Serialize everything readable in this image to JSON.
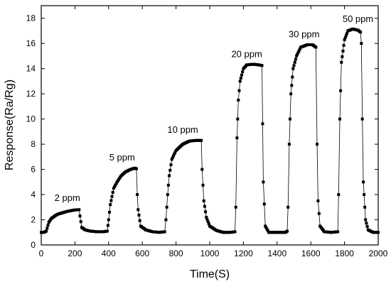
{
  "chart_data": {
    "type": "scatter",
    "title": "",
    "xlabel": "Time(S)",
    "ylabel": "Response(Ra/Rg)",
    "xlim": [
      0,
      2000
    ],
    "ylim": [
      0,
      19
    ],
    "xticks": [
      0,
      200,
      400,
      600,
      800,
      1000,
      1200,
      1400,
      1600,
      1800,
      2000
    ],
    "yticks": [
      0,
      2,
      4,
      6,
      8,
      10,
      12,
      14,
      16,
      18
    ],
    "grid": false,
    "legend": "none",
    "marker_color": "#000000",
    "series": [
      {
        "values": [
          [
            0,
            1.0
          ],
          [
            15,
            1.0
          ],
          [
            30,
            1.1
          ],
          [
            45,
            1.8
          ],
          [
            60,
            2.1
          ],
          [
            80,
            2.3
          ],
          [
            100,
            2.45
          ],
          [
            125,
            2.55
          ],
          [
            150,
            2.65
          ],
          [
            175,
            2.72
          ],
          [
            200,
            2.78
          ],
          [
            225,
            2.8
          ],
          [
            230,
            2.3
          ],
          [
            240,
            1.4
          ],
          [
            260,
            1.2
          ],
          [
            290,
            1.1
          ],
          [
            330,
            1.05
          ],
          [
            370,
            1.05
          ],
          [
            392,
            1.1
          ],
          [
            400,
            2.0
          ],
          [
            410,
            3.2
          ],
          [
            430,
            4.5
          ],
          [
            450,
            5.0
          ],
          [
            475,
            5.5
          ],
          [
            500,
            5.8
          ],
          [
            530,
            6.0
          ],
          [
            555,
            6.1
          ],
          [
            565,
            6.05
          ],
          [
            570,
            4.0
          ],
          [
            575,
            2.8
          ],
          [
            590,
            1.5
          ],
          [
            620,
            1.2
          ],
          [
            660,
            1.05
          ],
          [
            700,
            1.0
          ],
          [
            733,
            1.05
          ],
          [
            740,
            2.0
          ],
          [
            750,
            4.0
          ],
          [
            760,
            5.5
          ],
          [
            775,
            6.8
          ],
          [
            800,
            7.5
          ],
          [
            840,
            8.0
          ],
          [
            880,
            8.25
          ],
          [
            920,
            8.3
          ],
          [
            950,
            8.3
          ],
          [
            955,
            6.0
          ],
          [
            965,
            3.5
          ],
          [
            980,
            2.2
          ],
          [
            1000,
            1.5
          ],
          [
            1040,
            1.15
          ],
          [
            1080,
            1.0
          ],
          [
            1120,
            1.0
          ],
          [
            1150,
            1.05
          ],
          [
            1155,
            3.0
          ],
          [
            1162,
            8.5
          ],
          [
            1170,
            11.5
          ],
          [
            1180,
            13.0
          ],
          [
            1200,
            14.0
          ],
          [
            1220,
            14.3
          ],
          [
            1260,
            14.35
          ],
          [
            1290,
            14.3
          ],
          [
            1310,
            14.25
          ],
          [
            1318,
            5.0
          ],
          [
            1330,
            1.5
          ],
          [
            1350,
            1.0
          ],
          [
            1400,
            1.0
          ],
          [
            1450,
            1.0
          ],
          [
            1460,
            1.1
          ],
          [
            1465,
            3.0
          ],
          [
            1472,
            8.0
          ],
          [
            1482,
            12.0
          ],
          [
            1495,
            14.0
          ],
          [
            1515,
            15.0
          ],
          [
            1540,
            15.7
          ],
          [
            1580,
            15.9
          ],
          [
            1610,
            15.9
          ],
          [
            1630,
            15.7
          ],
          [
            1637,
            8.0
          ],
          [
            1643,
            3.5
          ],
          [
            1655,
            1.5
          ],
          [
            1680,
            1.05
          ],
          [
            1720,
            1.0
          ],
          [
            1760,
            1.05
          ],
          [
            1765,
            4.0
          ],
          [
            1772,
            10.0
          ],
          [
            1782,
            14.5
          ],
          [
            1800,
            16.3
          ],
          [
            1820,
            17.0
          ],
          [
            1850,
            17.15
          ],
          [
            1880,
            17.05
          ],
          [
            1895,
            16.9
          ],
          [
            1900,
            16.0
          ],
          [
            1906,
            10.0
          ],
          [
            1912,
            5.0
          ],
          [
            1925,
            2.0
          ],
          [
            1940,
            1.2
          ],
          [
            1970,
            1.0
          ],
          [
            2000,
            1.0
          ]
        ]
      }
    ],
    "annotations": [
      {
        "text": "2 ppm",
        "x": 155,
        "y": 3.5
      },
      {
        "text": "5 ppm",
        "x": 480,
        "y": 6.7
      },
      {
        "text": "10 ppm",
        "x": 840,
        "y": 8.9
      },
      {
        "text": "20 ppm",
        "x": 1220,
        "y": 14.9
      },
      {
        "text": "30 ppm",
        "x": 1560,
        "y": 16.5
      },
      {
        "text": "50 ppm",
        "x": 1880,
        "y": 17.7
      }
    ]
  }
}
